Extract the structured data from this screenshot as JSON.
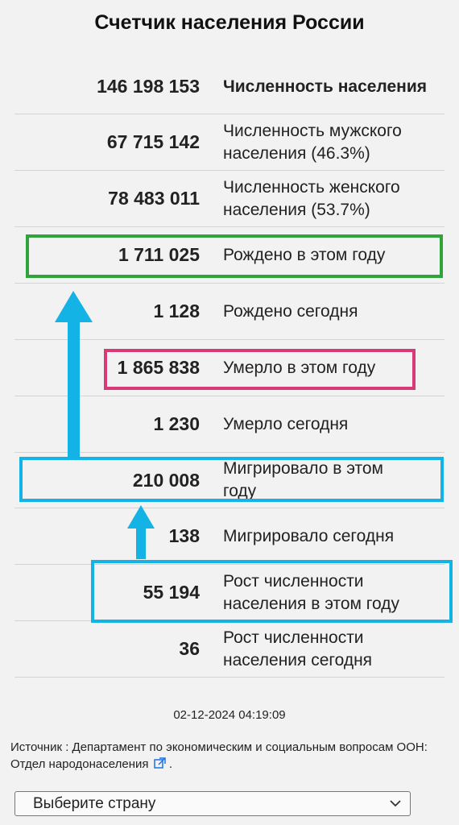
{
  "title": "Счетчик населения России",
  "rows": [
    {
      "value": "146 198 153",
      "label": "Численность населения"
    },
    {
      "value": "67 715 142",
      "label_line1": "Численность мужского",
      "label_line2": "населения (46.3%)"
    },
    {
      "value": "78 483 011",
      "label_line1": "Численность женского",
      "label_line2": "населения (53.7%)"
    },
    {
      "value": "1 711 025",
      "label": "Рождено в этом году"
    },
    {
      "value": "1 128",
      "label": "Рождено сегодня"
    },
    {
      "value": "1 865 838",
      "label": "Умерло в этом году"
    },
    {
      "value": "1 230",
      "label": "Умерло сегодня"
    },
    {
      "value": "210 008",
      "label_line1": "Мигрировало в этом",
      "label_line2": "году"
    },
    {
      "value": "138",
      "label": "Мигрировало сегодня"
    },
    {
      "value": "55 194",
      "label_line1": "Рост численности",
      "label_line2": "населения в этом году"
    },
    {
      "value": "36",
      "label_line1": "Рост численности",
      "label_line2": "населения сегодня"
    }
  ],
  "timestamp": "02-12-2024 04:19:09",
  "source": {
    "text": "Источник : Департамент по экономическим и социальным вопросам ООН: Отдел народонаселения",
    "suffix": "."
  },
  "country_select": {
    "selected": "Выберите страну"
  },
  "colors": {
    "highlight_green": "#2fa43a",
    "highlight_pink": "#d83a78",
    "highlight_blue": "#14b3e6",
    "arrow": "#14b3e6",
    "link_icon": "#1a73e8"
  },
  "icons": [
    "external-link-icon",
    "chevron-down-icon",
    "arrow-up-icon"
  ]
}
